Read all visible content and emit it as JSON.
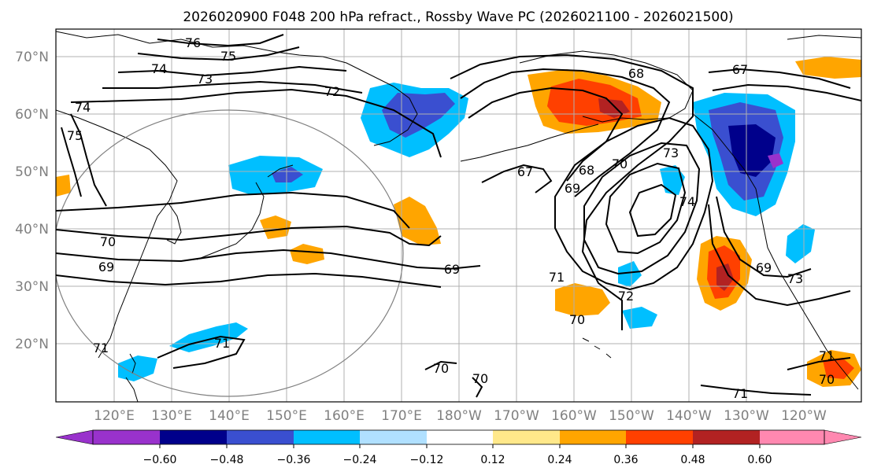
{
  "title": "2026020900 F048 200 hPa refract., Rossby Wave PC (2026021100 - 2026021500)",
  "map": {
    "lat_labels": [
      "70°N",
      "60°N",
      "50°N",
      "40°N",
      "30°N",
      "20°N"
    ],
    "lon_labels": [
      "120°E",
      "130°E",
      "140°E",
      "150°E",
      "160°E",
      "170°E",
      "180°W",
      "170°W",
      "160°W",
      "150°W",
      "140°W",
      "130°W",
      "120°W"
    ],
    "contour_labels": [
      "76",
      "75",
      "74",
      "73",
      "72",
      "74",
      "75",
      "70",
      "69",
      "71",
      "71",
      "69",
      "67",
      "68",
      "69",
      "70",
      "73",
      "74",
      "68",
      "67",
      "71",
      "72",
      "70",
      "69",
      "73",
      "70",
      "70",
      "71",
      "71",
      "70"
    ]
  },
  "colorbar": {
    "tick_labels": [
      "−0.60",
      "−0.48",
      "−0.36",
      "−0.24",
      "−0.12",
      "0.12",
      "0.24",
      "0.36",
      "0.48",
      "0.60"
    ],
    "colors": [
      "#9932cc",
      "#00008b",
      "#3a4fd0",
      "#00bfff",
      "#b0e0ff",
      "#ffffff",
      "#ffe88a",
      "#ffa500",
      "#ff4000",
      "#b22222",
      "#ff88b0"
    ]
  },
  "colors": {
    "contour": "#000000",
    "coast": "#000000",
    "grid": "#b0b0b0",
    "circle": "#808080",
    "neg_strong": "#3a4fd0",
    "neg_mid": "#00bfff",
    "neg_weak": "#b0e0ff",
    "pos_weak": "#ffe88a",
    "pos_mid": "#ffa500",
    "pos_strong": "#ff4000",
    "pos_xstrong": "#b22222",
    "neg_xstrong": "#00008b"
  }
}
